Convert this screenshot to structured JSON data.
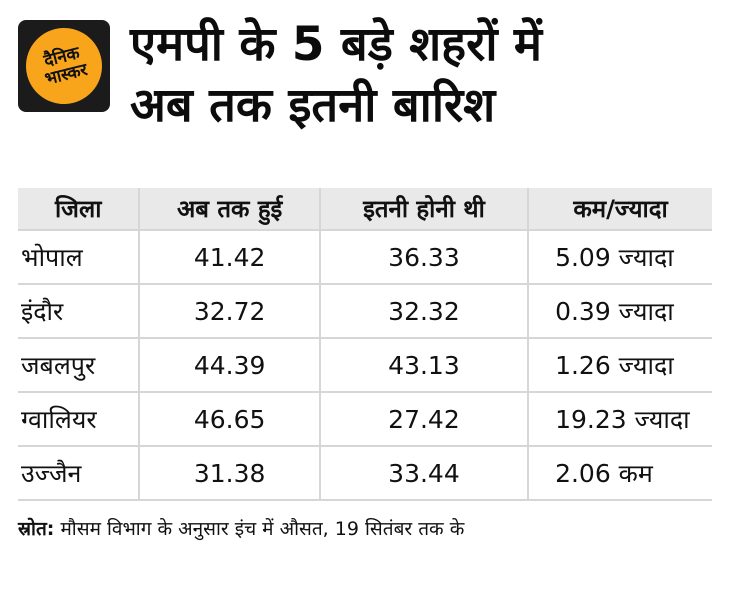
{
  "brand": {
    "logo_line1": "दैनिक",
    "logo_line2": "भास्कर"
  },
  "header": {
    "title_line1": "एमपी के 5 बड़े शहरों में",
    "title_line2": "अब तक इतनी बारिश"
  },
  "table": {
    "columns": [
      "जिला",
      "अब तक हुई",
      "इतनी होनी थी",
      "कम/ज्यादा"
    ],
    "rows": [
      [
        "भोपाल",
        "41.42",
        "36.33",
        "5.09 ज्यादा"
      ],
      [
        "इंदौर",
        "32.72",
        "32.32",
        "0.39 ज्यादा"
      ],
      [
        "जबलपुर",
        "44.39",
        "43.13",
        "1.26 ज्यादा"
      ],
      [
        "ग्वालियर",
        "46.65",
        "27.42",
        "19.23 ज्यादा"
      ],
      [
        "उज्जैन",
        "31.38",
        "33.44",
        "2.06 कम"
      ]
    ]
  },
  "footer": {
    "source_label": "स्रोत:",
    "source_text": "मौसम विभाग के अनुसार इंच में औसत, 19 सितंबर तक के"
  },
  "colors": {
    "accent_yellow": "#F9A51B",
    "logo_black": "#1b1b1b",
    "header_bg": "#e9e9e9",
    "border": "#d6d6d6",
    "text": "#111111"
  },
  "chart_data": {
    "type": "table",
    "title": "एमपी के 5 बड़े शहरों में अब तक इतनी बारिश",
    "columns": [
      "जिला",
      "अब तक हुई",
      "इतनी होनी थी",
      "कम/ज्यादा"
    ],
    "rows": [
      {
        "district": "भोपाल",
        "rain_so_far": 41.42,
        "expected": 36.33,
        "difference": "5.09 ज्यादा"
      },
      {
        "district": "इंदौर",
        "rain_so_far": 32.72,
        "expected": 32.32,
        "difference": "0.39 ज्यादा"
      },
      {
        "district": "जबलपुर",
        "rain_so_far": 44.39,
        "expected": 43.13,
        "difference": "1.26 ज्यादा"
      },
      {
        "district": "ग्वालियर",
        "rain_so_far": 46.65,
        "expected": 27.42,
        "difference": "19.23 ज्यादा"
      },
      {
        "district": "उज्जैन",
        "rain_so_far": 31.38,
        "expected": 33.44,
        "difference": "2.06 कम"
      }
    ],
    "units": "inches",
    "note": "मौसम विभाग के अनुसार इंच में औसत, 19 सितंबर तक के"
  }
}
